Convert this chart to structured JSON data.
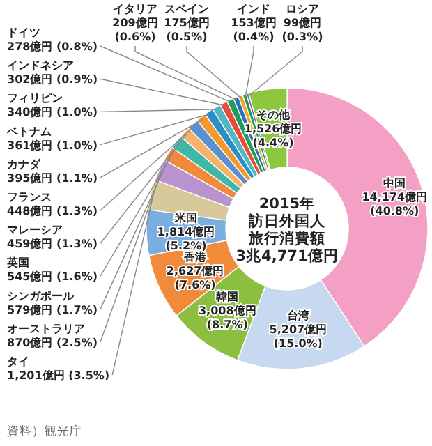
{
  "chart_data": {
    "type": "donut",
    "title": "2015年",
    "subtitle": "訪日外国人旅行消費額",
    "categories": [
      "中国",
      "台湾",
      "韓国",
      "香港",
      "米国",
      "タイ",
      "オーストラリア",
      "シンガポール",
      "英国",
      "マレーシア",
      "フランス",
      "カナダ",
      "ベトナム",
      "フィリピン",
      "インドネシア",
      "ドイツ",
      "イタリア",
      "スペイン",
      "インド",
      "ロシア",
      "その他"
    ],
    "values": [
      14174,
      5207,
      3008,
      2627,
      1814,
      1201,
      870,
      579,
      545,
      459,
      448,
      395,
      361,
      340,
      302,
      278,
      209,
      175,
      153,
      99,
      1526
    ],
    "value_labels": [
      "14,174億円 (40.8%)",
      "5,207億円 (15.0%)",
      "3,008億円 (8.7%)",
      "2,627億円 (7.6%)",
      "1,814億円 (5.2%)",
      "1,201億円 (3.5%)",
      "870億円 (2.5%)",
      "579億円 (1.7%)",
      "545億円 (1.6%)",
      "459億円 (1.3%)",
      "448億円 (1.3%)",
      "395億円 (1.1%)",
      "361億円 (1.0%)",
      "340億円 (1.0%)",
      "302億円 (0.9%)",
      "278億円 (0.8%)",
      "209億円 (0.6%)",
      "175億円 (0.5%)",
      "153億円 (0.4%)",
      "99億円 (0.3%)",
      "1,526億円 (4.4%)"
    ],
    "colors": [
      "#f3a0c4",
      "#c6d9f1",
      "#8cbf3f",
      "#f28a3c",
      "#7aaee0",
      "#d8c99a",
      "#b893cf",
      "#f08a3c",
      "#3fb8a8",
      "#f5b36a",
      "#5b8fd0",
      "#f39a2e",
      "#2a8fc6",
      "#4fb8c0",
      "#e94b3c",
      "#1f9e5a",
      "#2a6fbf",
      "#f5a623",
      "#1a9b4b",
      "#8a5fb0",
      "#8dc63f"
    ],
    "legend": false,
    "annotations": [
      "3兆4,771億円",
      "資料）観光庁"
    ]
  }
}
